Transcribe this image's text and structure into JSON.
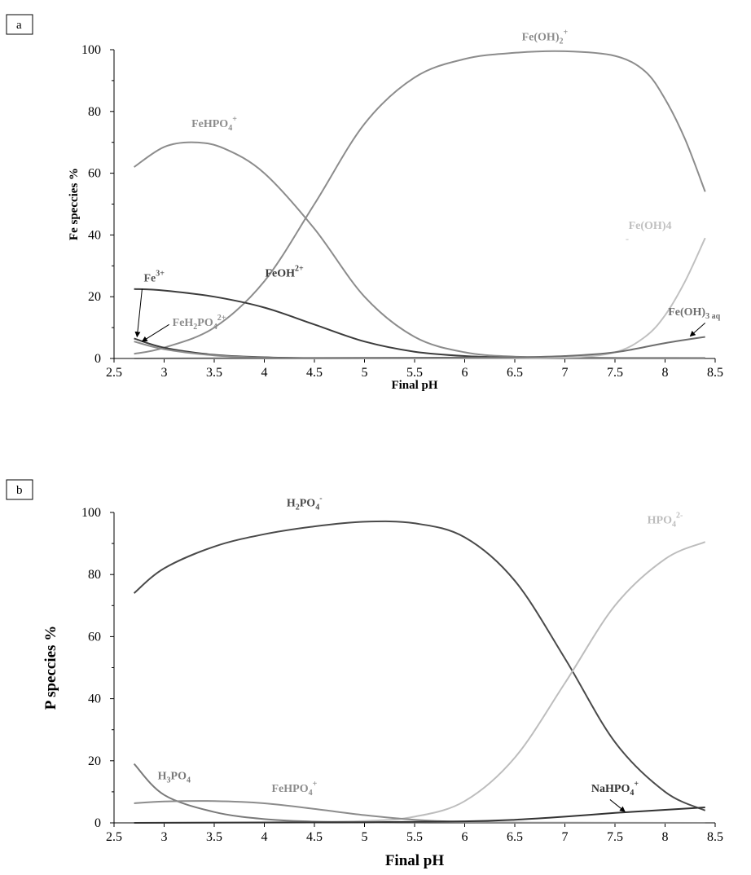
{
  "chart_data": [
    {
      "type": "line",
      "panel": "a",
      "xlabel": "Final pH",
      "ylabel": "Fe speccies %",
      "xlim": [
        2.5,
        8.5
      ],
      "ylim": [
        0,
        100
      ],
      "xticks": [
        "2.5",
        "3",
        "3.5",
        "4",
        "4.5",
        "5",
        "5.5",
        "6",
        "6.5",
        "7",
        "7.5",
        "8",
        "8.5"
      ],
      "yticks": [
        "0",
        "20",
        "40",
        "60",
        "80",
        "100"
      ],
      "grid": false,
      "series": [
        {
          "name": "Fe(OH)2+",
          "color": "#8c8c8c",
          "x": [
            2.7,
            3.0,
            3.5,
            4.0,
            4.5,
            5.0,
            5.5,
            6.0,
            6.5,
            7.0,
            7.5,
            7.8,
            8.0,
            8.2,
            8.4
          ],
          "y": [
            1.5,
            3.5,
            10,
            25,
            50,
            76,
            91,
            97,
            99,
            99.5,
            98,
            93,
            84,
            71,
            54
          ]
        },
        {
          "name": "FeHPO4+",
          "color": "#8c8c8c",
          "x": [
            2.7,
            3.0,
            3.3,
            3.6,
            4.0,
            4.5,
            5.0,
            5.5,
            6.0,
            6.5,
            7.0,
            7.5,
            8.0,
            8.4
          ],
          "y": [
            62,
            68.5,
            70,
            68,
            60,
            42,
            20,
            7,
            2,
            0.6,
            0.3,
            0.2,
            0.2,
            0.2
          ]
        },
        {
          "name": "FeOH2+",
          "color": "#3c3c3c",
          "x": [
            2.7,
            3.0,
            3.5,
            4.0,
            4.5,
            5.0,
            5.5,
            6.0,
            6.5,
            7.0,
            7.5,
            8.0,
            8.4
          ],
          "y": [
            22.5,
            22,
            20,
            16.5,
            11,
            5.5,
            2.2,
            0.8,
            0.3,
            0.1,
            0.05,
            0.02,
            0.01
          ]
        },
        {
          "name": "Fe3+",
          "color": "#3c3c3c",
          "x": [
            2.7,
            3.0,
            3.5,
            4.0,
            4.5,
            5.0,
            6.0,
            7.0,
            8.4
          ],
          "y": [
            6.5,
            3.5,
            1.2,
            0.4,
            0.1,
            0.03,
            0,
            0,
            0
          ]
        },
        {
          "name": "FeH2PO42+",
          "color": "#8c8c8c",
          "x": [
            2.7,
            3.0,
            3.5,
            4.0,
            4.5,
            5.0,
            6.0,
            7.0,
            8.4
          ],
          "y": [
            5.5,
            3,
            1,
            0.3,
            0.1,
            0.02,
            0,
            0,
            0
          ]
        },
        {
          "name": "Fe(OH)4-",
          "color": "#c0c0c0",
          "x": [
            2.7,
            6.0,
            7.0,
            7.5,
            7.8,
            8.0,
            8.2,
            8.4
          ],
          "y": [
            0,
            0,
            0.3,
            2,
            7,
            14,
            25,
            39
          ]
        },
        {
          "name": "Fe(OH)3 aq",
          "color": "#6e6e6e",
          "x": [
            2.7,
            6.0,
            6.5,
            7.0,
            7.5,
            8.0,
            8.4
          ],
          "y": [
            0,
            0.3,
            0.4,
            0.8,
            2,
            5,
            7
          ]
        }
      ],
      "labels": [
        {
          "main": "Fe(OH)",
          "sub": "2",
          "sup": "+",
          "x": 6.8,
          "y": 103,
          "color": "#8c8c8c"
        },
        {
          "main": "FeHPO",
          "sub": "4",
          "sup": "+",
          "x": 3.5,
          "y": 75,
          "color": "#8c8c8c"
        },
        {
          "main": "FeOH",
          "sub": "",
          "sup": "2+",
          "x": 4.2,
          "y": 26.5,
          "color": "#3c3c3c"
        },
        {
          "main": "Fe",
          "sub": "",
          "sup": "3+",
          "x": 2.9,
          "y": 25,
          "color": "#555555",
          "plain": true
        },
        {
          "main": "FeH",
          "sub": "2",
          "sup": "",
          "tail": "PO",
          "tail_sub": "4",
          "tail_sup": "2+",
          "x": 3.35,
          "y": 10.5,
          "color": "#8c8c8c"
        },
        {
          "main": "Fe(OH)",
          "sub": "",
          "sup": "",
          "tail": "4",
          "x": 7.85,
          "y": 42,
          "color": "#c0c0c0",
          "extra": "-"
        },
        {
          "main": "Fe(OH)",
          "sub": "3 aq",
          "sup": "",
          "x": 8.55,
          "y": 14,
          "color": "#6e6e6e"
        }
      ],
      "arrows": [
        {
          "from": [
            2.78,
            22.5
          ],
          "to": [
            2.73,
            7.0
          ]
        },
        {
          "from": [
            3.05,
            11.0
          ],
          "to": [
            2.78,
            5.5
          ]
        },
        {
          "from": [
            8.4,
            11.5
          ],
          "to": [
            8.25,
            7.2
          ]
        }
      ]
    },
    {
      "type": "line",
      "panel": "b",
      "xlabel": "Final pH",
      "ylabel": "P speccies %",
      "xlim": [
        2.5,
        8.5
      ],
      "ylim": [
        0,
        100
      ],
      "xticks": [
        "2.5",
        "3",
        "3.5",
        "4",
        "4.5",
        "5",
        "5.5",
        "6",
        "6.5",
        "7",
        "7.5",
        "8",
        "8.5"
      ],
      "yticks": [
        "0",
        "20",
        "40",
        "60",
        "80",
        "100"
      ],
      "grid": false,
      "series": [
        {
          "name": "H2PO4-",
          "color": "#4a4a4a",
          "x": [
            2.7,
            3.0,
            3.5,
            4.0,
            4.5,
            5.0,
            5.5,
            6.0,
            6.5,
            7.0,
            7.5,
            8.0,
            8.4
          ],
          "y": [
            74,
            82,
            89,
            93,
            95.5,
            97,
            96.5,
            92,
            78,
            53,
            26,
            10,
            4
          ]
        },
        {
          "name": "HPO42-",
          "color": "#bdbdbd",
          "x": [
            2.7,
            4.0,
            5.0,
            5.5,
            6.0,
            6.5,
            7.0,
            7.5,
            8.0,
            8.4
          ],
          "y": [
            0,
            0.2,
            0.6,
            2,
            7,
            21,
            45,
            70,
            85,
            90.5
          ]
        },
        {
          "name": "H3PO4",
          "color": "#7a7a7a",
          "x": [
            2.7,
            3.0,
            3.5,
            4.0,
            4.5,
            5.0,
            5.5,
            6.0,
            7.0,
            8.4
          ],
          "y": [
            19,
            9,
            3.5,
            1.2,
            0.4,
            0.15,
            0.05,
            0.02,
            0,
            0
          ]
        },
        {
          "name": "FeHPO4+",
          "color": "#8c8c8c",
          "x": [
            2.7,
            3.0,
            3.5,
            4.0,
            4.5,
            5.0,
            5.5,
            6.0,
            6.5,
            7.0,
            8.4
          ],
          "y": [
            6.3,
            6.9,
            7,
            6.3,
            4.5,
            2.5,
            1,
            0.3,
            0.1,
            0.05,
            0
          ]
        },
        {
          "name": "NaHPO4+",
          "color": "#333333",
          "x": [
            2.7,
            4.0,
            5.0,
            6.0,
            6.5,
            7.0,
            7.5,
            8.0,
            8.4
          ],
          "y": [
            0,
            0.1,
            0.2,
            0.5,
            1,
            2,
            3.2,
            4.2,
            5
          ]
        }
      ],
      "labels": [
        {
          "main": "H",
          "sub": "2",
          "sup": "",
          "tail": "PO",
          "tail_sub": "4",
          "tail_sup": "-",
          "x": 4.4,
          "y": 102,
          "color": "#4a4a4a"
        },
        {
          "main": "HPO",
          "sub": "4",
          "sup": "2-",
          "x": 8.0,
          "y": 96.5,
          "color": "#bdbdbd"
        },
        {
          "main": "H",
          "sub": "3",
          "sup": "",
          "tail": "PO",
          "tail_sub": "4",
          "x": 3.1,
          "y": 14,
          "color": "#7a7a7a"
        },
        {
          "main": "FeHPO",
          "sub": "4",
          "sup": "+",
          "x": 4.3,
          "y": 10,
          "color": "#8c8c8c"
        },
        {
          "main": "NaHPO",
          "sub": "4",
          "sup": "+",
          "x": 7.5,
          "y": 10,
          "color": "#333333"
        }
      ],
      "arrows": [
        {
          "from": [
            7.45,
            7.5
          ],
          "to": [
            7.6,
            3.6
          ]
        }
      ]
    }
  ],
  "panels": {
    "a": {
      "tag": "a"
    },
    "b": {
      "tag": "b"
    }
  }
}
